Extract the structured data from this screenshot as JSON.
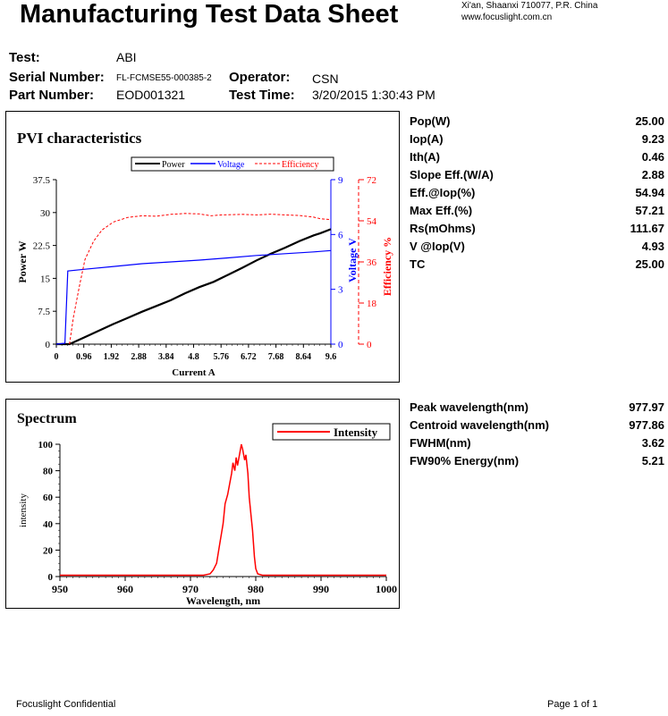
{
  "header": {
    "title": "Manufacturing Test Data Sheet",
    "address_line1": "Xi'an, Shaanxi 710077,  P.R.  China",
    "address_line2": "www.focuslight.com.cn"
  },
  "info": {
    "test_label": "Test:",
    "test_value": "ABI",
    "serial_label": "Serial Number:",
    "serial_value": "FL-FCMSE55-000385-2",
    "operator_label": "Operator:",
    "operator_value": "CSN",
    "part_label": "Part Number:",
    "part_value": "EOD001321",
    "time_label": "Test Time:",
    "time_value": "3/20/2015  1:30:43 PM"
  },
  "pvi_stats": [
    {
      "label": "Pop(W)",
      "value": "25.00"
    },
    {
      "label": "Iop(A)",
      "value": "9.23"
    },
    {
      "label": "Ith(A)",
      "value": "0.46"
    },
    {
      "label": "Slope Eff.(W/A)",
      "value": "2.88"
    },
    {
      "label": "Eff.@Iop(%)",
      "value": "54.94"
    },
    {
      "label": "Max Eff.(%)",
      "value": "57.21"
    },
    {
      "label": "Rs(mOhms)",
      "value": "111.67"
    },
    {
      "label": "V @Iop(V)",
      "value": "4.93"
    },
    {
      "label": "TC",
      "value": "25.00"
    }
  ],
  "spectrum_stats": [
    {
      "label": "Peak wavelength(nm)",
      "value": "977.97"
    },
    {
      "label": "Centroid wavelength(nm)",
      "value": "977.86"
    },
    {
      "label": "FWHM(nm)",
      "value": "3.62"
    },
    {
      "label": "FW90% Energy(nm)",
      "value": "5.21"
    }
  ],
  "footer": {
    "left": "Focuslight Confidential",
    "right": "Page 1 of 1"
  },
  "chart_data": [
    {
      "type": "line",
      "title": "PVI characteristics",
      "xlabel": "Current A",
      "ylabel": "Power W",
      "y2label": "Voltage V",
      "y3label": "Efficiency %",
      "xlim": [
        0,
        9.6
      ],
      "ylim": [
        0,
        37.5
      ],
      "y2lim": [
        0,
        9
      ],
      "y3lim": [
        0,
        72
      ],
      "x_ticks": [
        "0",
        "0.96",
        "1.92",
        "2.88",
        "3.84",
        "4.8",
        "5.76",
        "6.72",
        "7.68",
        "8.64",
        "9.6"
      ],
      "y_ticks": [
        "0",
        "7.5",
        "15",
        "22.5",
        "30",
        "37.5"
      ],
      "y2_ticks": [
        "0",
        "3",
        "6",
        "9"
      ],
      "y3_ticks": [
        "0",
        "18",
        "36",
        "54",
        "72"
      ],
      "legend": [
        "Power",
        "Voltage",
        "Efficiency"
      ],
      "legend_position": "top",
      "colors": {
        "power": "#000000",
        "voltage": "#0000ff",
        "efficiency": "#ff0000"
      },
      "series": [
        {
          "name": "Power",
          "axis": "y",
          "points": [
            [
              0,
              0
            ],
            [
              0.46,
              0
            ],
            [
              1,
              1.6
            ],
            [
              1.5,
              3.1
            ],
            [
              2,
              4.6
            ],
            [
              2.5,
              6.0
            ],
            [
              3,
              7.4
            ],
            [
              3.5,
              8.7
            ],
            [
              4,
              10.0
            ],
            [
              4.5,
              11.6
            ],
            [
              5,
              13.0
            ],
            [
              5.5,
              14.2
            ],
            [
              6,
              15.8
            ],
            [
              6.5,
              17.4
            ],
            [
              7,
              19.1
            ],
            [
              7.5,
              20.6
            ],
            [
              8,
              22.0
            ],
            [
              8.5,
              23.5
            ],
            [
              9,
              24.8
            ],
            [
              9.23,
              25.3
            ],
            [
              9.6,
              26.2
            ]
          ]
        },
        {
          "name": "Voltage",
          "axis": "y2",
          "points": [
            [
              0,
              0
            ],
            [
              0.3,
              0.05
            ],
            [
              0.4,
              4.0
            ],
            [
              1,
              4.1
            ],
            [
              2,
              4.25
            ],
            [
              3,
              4.4
            ],
            [
              4,
              4.5
            ],
            [
              5,
              4.6
            ],
            [
              6,
              4.72
            ],
            [
              7,
              4.85
            ],
            [
              8,
              4.95
            ],
            [
              9,
              5.05
            ],
            [
              9.6,
              5.12
            ]
          ]
        },
        {
          "name": "Efficiency",
          "axis": "y3",
          "points": [
            [
              0.46,
              0
            ],
            [
              0.6,
              12
            ],
            [
              0.8,
              25
            ],
            [
              1,
              37
            ],
            [
              1.3,
              45
            ],
            [
              1.6,
              50
            ],
            [
              2,
              53.5
            ],
            [
              2.5,
              55.5
            ],
            [
              3,
              56.2
            ],
            [
              3.5,
              56.0
            ],
            [
              4,
              56.8
            ],
            [
              4.5,
              57.2
            ],
            [
              5,
              57.0
            ],
            [
              5.4,
              56.2
            ],
            [
              5.8,
              56.6
            ],
            [
              6.5,
              56.8
            ],
            [
              7,
              56.6
            ],
            [
              7.5,
              56.9
            ],
            [
              8,
              56.6
            ],
            [
              8.5,
              56.3
            ],
            [
              9,
              55.6
            ],
            [
              9.23,
              54.9
            ],
            [
              9.6,
              54.5
            ]
          ]
        }
      ]
    },
    {
      "type": "line",
      "title": "Spectrum",
      "xlabel": "Wavelength, nm",
      "ylabel": "intensity",
      "xlim": [
        950,
        1000
      ],
      "ylim": [
        0,
        100
      ],
      "x_ticks": [
        "950",
        "960",
        "970",
        "980",
        "990",
        "1000"
      ],
      "y_ticks": [
        "0",
        "20",
        "40",
        "60",
        "80",
        "100"
      ],
      "legend": [
        "Intensity"
      ],
      "legend_position": "top-right",
      "colors": {
        "intensity": "#ff0000"
      },
      "series": [
        {
          "name": "Intensity",
          "points": [
            [
              950,
              1
            ],
            [
              972,
              1
            ],
            [
              973,
              2
            ],
            [
              973.5,
              5
            ],
            [
              974,
              10
            ],
            [
              974.5,
              25
            ],
            [
              975,
              40
            ],
            [
              975.3,
              55
            ],
            [
              975.7,
              62
            ],
            [
              976,
              70
            ],
            [
              976.3,
              78
            ],
            [
              976.5,
              86
            ],
            [
              976.8,
              80
            ],
            [
              977,
              90
            ],
            [
              977.2,
              84
            ],
            [
              977.5,
              92
            ],
            [
              977.8,
              100
            ],
            [
              978,
              96
            ],
            [
              978.3,
              88
            ],
            [
              978.5,
              92
            ],
            [
              978.8,
              78
            ],
            [
              979,
              60
            ],
            [
              979.3,
              45
            ],
            [
              979.5,
              35
            ],
            [
              979.8,
              15
            ],
            [
              980,
              6
            ],
            [
              980.3,
              2
            ],
            [
              981,
              1
            ],
            [
              1000,
              1
            ]
          ]
        }
      ]
    }
  ]
}
